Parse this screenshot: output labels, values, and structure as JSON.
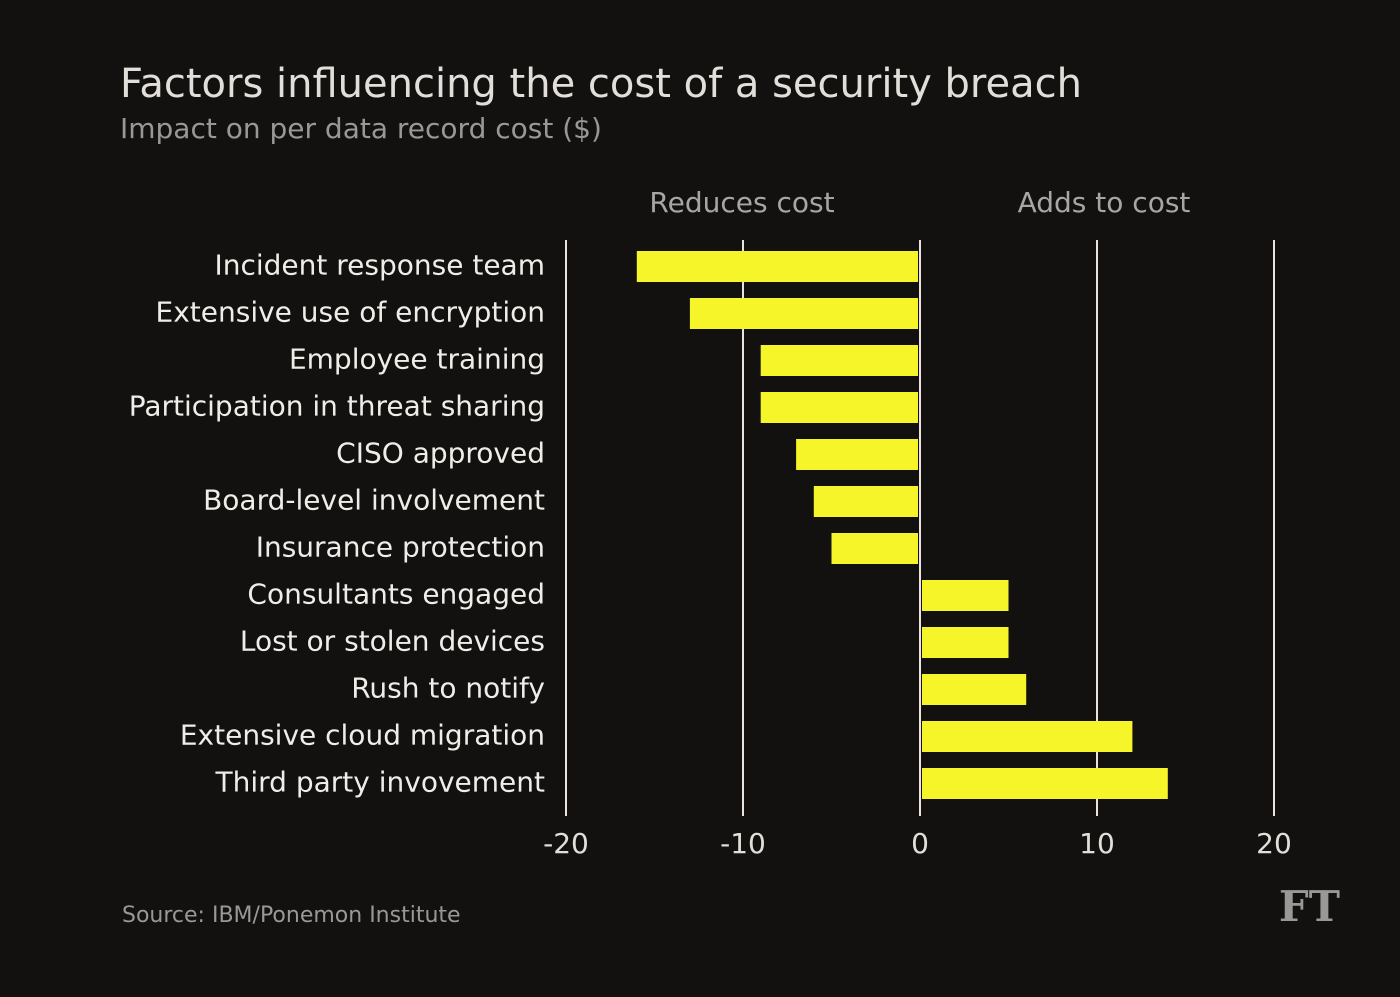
{
  "chart_data": {
    "type": "barh",
    "title": "Factors influencing the cost of a security breach",
    "subtitle": "Impact on per data record cost ($)",
    "annotations": [
      "Reduces cost",
      "Adds to cost"
    ],
    "categories": [
      "Incident response team",
      "Extensive use of encryption",
      "Employee training",
      "Participation in threat sharing",
      "CISO approved",
      "Board-level involvement",
      "Insurance protection",
      "Consultants engaged",
      "Lost or stolen devices",
      "Rush to notify",
      "Extensive cloud migration",
      "Third party invovement"
    ],
    "values": [
      -16,
      -13,
      -9,
      -9,
      -7,
      -6,
      -5,
      5,
      5,
      6,
      12,
      14
    ],
    "color": "#f5f52a",
    "xlim": [
      -20,
      20
    ],
    "xticks": [
      -20,
      -10,
      0,
      10,
      20
    ],
    "grid": true,
    "source": "Source: IBM/Ponemon Institute",
    "logo": "FT"
  }
}
